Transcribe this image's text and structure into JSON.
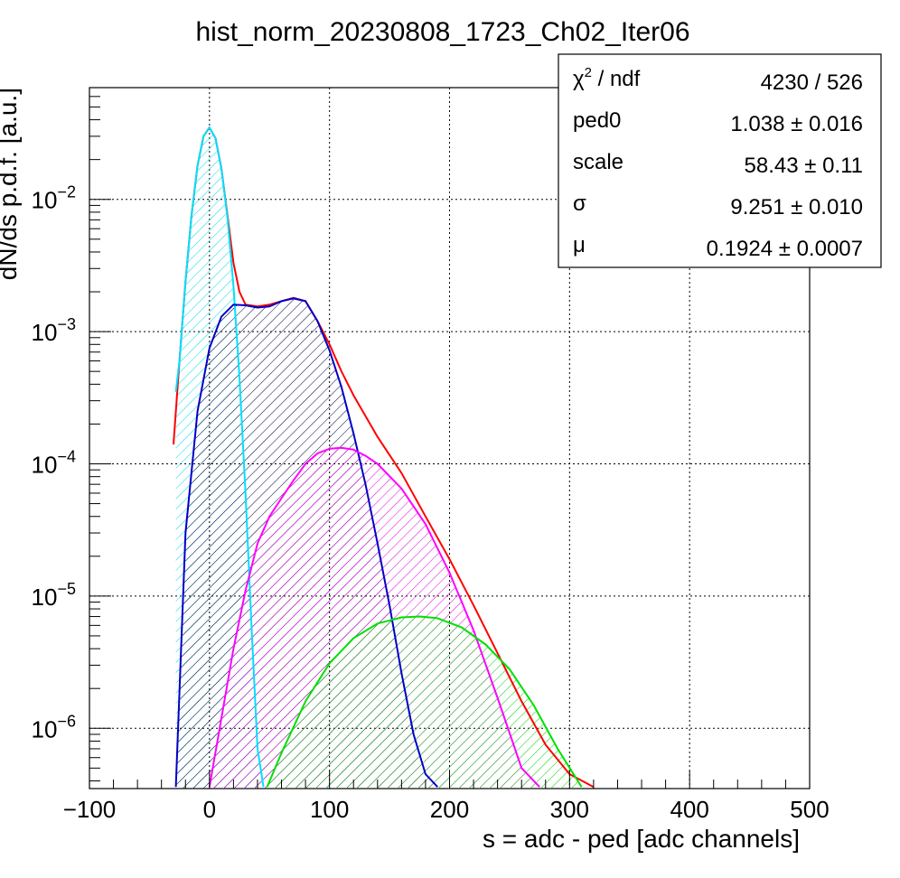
{
  "chart_data": {
    "type": "line",
    "title": "hist_norm_20230808_1723_Ch02_Iter06",
    "xlabel": "s = adc - ped [adc channels]",
    "ylabel": "dN/ds p.d.f. [a.u.]",
    "xlim": [
      -100,
      500
    ],
    "ylim": [
      3.5e-07,
      0.07
    ],
    "yscale": "log",
    "grid": true,
    "x_ticks": [
      "−100",
      "0",
      "100",
      "200",
      "300",
      "400",
      "500"
    ],
    "x_tick_values": [
      -100,
      0,
      100,
      200,
      300,
      400,
      500
    ],
    "y_ticks": [
      {
        "value": 0.01,
        "base": "10",
        "exp": "−2"
      },
      {
        "value": 0.001,
        "base": "10",
        "exp": "−3"
      },
      {
        "value": 0.0001,
        "base": "10",
        "exp": "−4"
      },
      {
        "value": 1e-05,
        "base": "10",
        "exp": "−5"
      },
      {
        "value": 1e-06,
        "base": "10",
        "exp": "−6"
      }
    ],
    "series": [
      {
        "color": "#ff0000",
        "x": [
          -30,
          -25,
          -20,
          -15,
          -10,
          -5,
          0,
          5,
          10,
          15,
          20,
          25,
          30,
          40,
          50,
          60,
          70,
          80,
          90,
          100,
          110,
          120,
          140,
          160,
          180,
          200,
          220,
          240,
          260,
          280,
          300,
          320
        ],
        "y": [
          0.00014,
          0.0006,
          0.0024,
          0.0075,
          0.018,
          0.03,
          0.035,
          0.029,
          0.017,
          0.0075,
          0.0033,
          0.002,
          0.0016,
          0.00155,
          0.0016,
          0.0017,
          0.0018,
          0.0017,
          0.0012,
          0.0008,
          0.0005,
          0.00033,
          0.00016,
          8.5e-05,
          4e-05,
          1.9e-05,
          8.5e-06,
          3.7e-06,
          1.6e-06,
          7.5e-07,
          4.5e-07,
          3.6e-07
        ]
      },
      {
        "color": "#00e0ff",
        "fill": true,
        "x": [
          -28,
          -25,
          -20,
          -15,
          -10,
          -5,
          0,
          5,
          10,
          15,
          20,
          25,
          30,
          35,
          40,
          45
        ],
        "y": [
          0.00035,
          0.0006,
          0.0024,
          0.0075,
          0.018,
          0.03,
          0.035,
          0.029,
          0.017,
          0.0072,
          0.0022,
          0.00045,
          6e-05,
          6e-06,
          7e-07,
          3.6e-07
        ]
      },
      {
        "color": "#0000c8",
        "fill": true,
        "x": [
          -28,
          -20,
          -10,
          0,
          10,
          20,
          30,
          40,
          50,
          60,
          70,
          80,
          90,
          100,
          110,
          120,
          130,
          140,
          150,
          160,
          170,
          180,
          190
        ],
        "y": [
          3.6e-07,
          3e-05,
          0.00025,
          0.00075,
          0.0013,
          0.0016,
          0.00158,
          0.00152,
          0.00155,
          0.0017,
          0.00178,
          0.0017,
          0.0012,
          0.00072,
          0.00038,
          0.00017,
          7e-05,
          2.5e-05,
          8.5e-06,
          2.6e-06,
          9e-07,
          4.5e-07,
          3.6e-07
        ]
      },
      {
        "color": "#ff00ff",
        "fill": true,
        "x": [
          0,
          10,
          20,
          30,
          40,
          50,
          60,
          70,
          80,
          90,
          100,
          110,
          120,
          130,
          140,
          160,
          180,
          200,
          220,
          240,
          260,
          275
        ],
        "y": [
          3.6e-07,
          1.2e-06,
          4e-06,
          1.1e-05,
          2.5e-05,
          4e-05,
          5.5e-05,
          7.5e-05,
          0.0001,
          0.00012,
          0.00013,
          0.000132,
          0.000128,
          0.000115,
          0.0001,
          6.5e-05,
          3.5e-05,
          1.5e-05,
          5.5e-06,
          1.7e-06,
          5e-07,
          3.6e-07
        ]
      },
      {
        "color": "#00e000",
        "fill": true,
        "x": [
          48,
          60,
          80,
          100,
          120,
          140,
          160,
          175,
          190,
          210,
          230,
          250,
          270,
          290,
          310
        ],
        "y": [
          3.6e-07,
          6.5e-07,
          1.6e-06,
          3.1e-06,
          4.8e-06,
          6.2e-06,
          6.9e-06,
          7e-06,
          6.8e-06,
          5.8e-06,
          4.3e-06,
          2.8e-06,
          1.5e-06,
          7e-07,
          3.6e-07
        ]
      }
    ]
  },
  "stats_box": {
    "rows": [
      {
        "label": "χ",
        "sup": "2",
        "label_rest": " / ndf",
        "value": "4230 / 526"
      },
      {
        "label": "ped0",
        "value": "1.038 ± 0.016"
      },
      {
        "label": "scale",
        "value": "58.43 ± 0.11"
      },
      {
        "label": "σ",
        "value": "9.251 ± 0.010"
      },
      {
        "label": "μ",
        "value": "0.1924  ± 0.0007"
      }
    ]
  }
}
